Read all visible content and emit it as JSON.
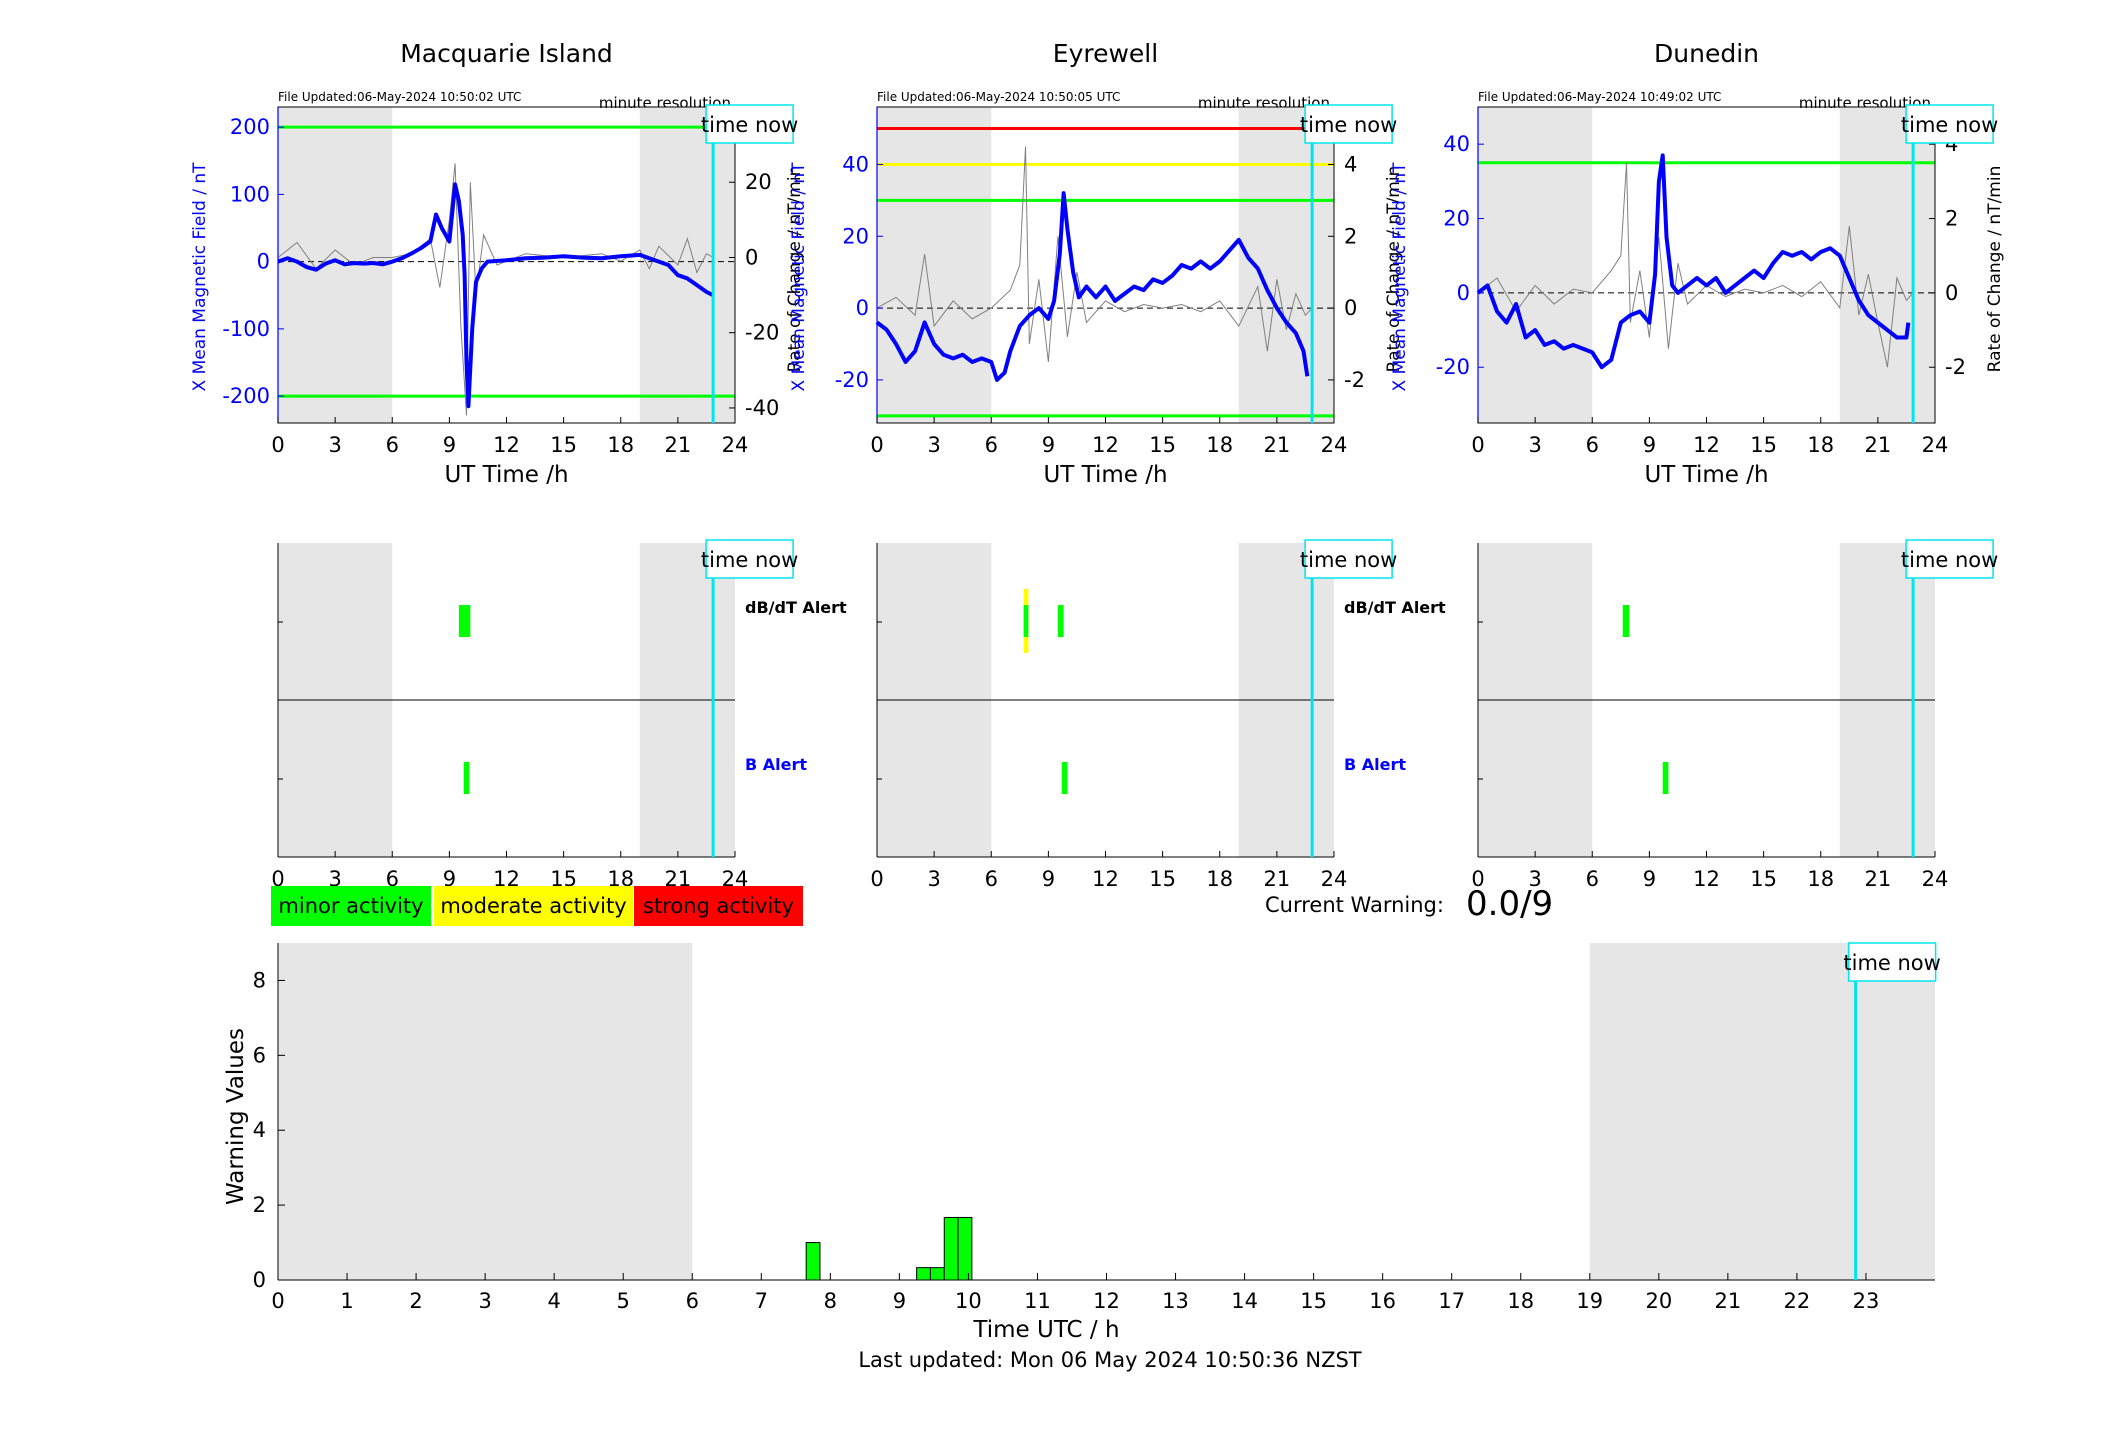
{
  "colors": {
    "night": "#e6e6e6",
    "series_b": "#0000ff",
    "series_dbdt": "#808080",
    "now_line": "#00e5ee",
    "minor": "#00ff00",
    "moderate": "#ffff00",
    "strong": "#ff0000"
  },
  "time_now_label": "time now",
  "legend": {
    "minor": "minor activity",
    "moderate": "moderate activity",
    "strong": "strong activity"
  },
  "current_warning": {
    "label": "Current Warning:",
    "value": "0.0/9"
  },
  "last_updated": "Last updated: Mon 06 May 2024 10:50:36 NZST",
  "chart_data": [
    {
      "type": "line",
      "title": "Macquarie Island",
      "file_updated": "File Updated:06-May-2024 10:50:02 UTC",
      "resolution": "minute resolution",
      "xlabel": "UT Time /h",
      "ylabel": "X Mean Magnetic Field / nT",
      "y2label": "Rate of Change / nT/min",
      "xlim": [
        0,
        24
      ],
      "xticks": [
        0,
        3,
        6,
        9,
        12,
        15,
        18,
        21,
        24
      ],
      "ylim": [
        -240,
        230
      ],
      "yticks": [
        -200,
        -100,
        0,
        100,
        200
      ],
      "y2lim": [
        -44,
        40
      ],
      "y2ticks": [
        -40,
        -20,
        0,
        20
      ],
      "night_bands": [
        [
          0,
          6
        ],
        [
          19,
          24
        ]
      ],
      "time_now": 22.85,
      "thresholds": [
        {
          "value": 200,
          "color": "#00ff00"
        },
        {
          "value": -200,
          "color": "#00ff00"
        }
      ],
      "series": [
        {
          "x": [
            0,
            0.5,
            1,
            1.5,
            2,
            2.5,
            3,
            3.5,
            4,
            4.5,
            5,
            5.5,
            6,
            6.5,
            7,
            7.5,
            8,
            8.3,
            8.6,
            9,
            9.3,
            9.5,
            9.7,
            9.8,
            9.9,
            10,
            10.2,
            10.4,
            10.7,
            11,
            12,
            13,
            14,
            15,
            16,
            17,
            18,
            19,
            19.5,
            20,
            20.5,
            21,
            21.5,
            22,
            22.5,
            22.85
          ],
          "values": [
            0,
            5,
            0,
            -8,
            -12,
            -3,
            2,
            -4,
            -2,
            -3,
            -2,
            -4,
            0,
            5,
            12,
            20,
            30,
            70,
            50,
            30,
            115,
            90,
            40,
            -20,
            -150,
            -215,
            -100,
            -30,
            -10,
            0,
            2,
            5,
            6,
            8,
            6,
            5,
            8,
            10,
            5,
            0,
            -5,
            -20,
            -25,
            -35,
            -45,
            -50
          ]
        },
        {
          "x": [
            0,
            1,
            2,
            3,
            4,
            5,
            6,
            7,
            8,
            8.5,
            9,
            9.3,
            9.6,
            9.9,
            10.1,
            10.4,
            10.8,
            11.5,
            13,
            15,
            17,
            18,
            19,
            19.5,
            20,
            21,
            21.5,
            22,
            22.5,
            22.85
          ],
          "values": [
            0,
            4,
            -3,
            2,
            -2,
            0,
            0,
            1,
            5,
            -8,
            10,
            25,
            -18,
            -42,
            20,
            -10,
            6,
            -2,
            1,
            0,
            1,
            -1,
            2,
            -3,
            3,
            -2,
            5,
            -4,
            1,
            0
          ]
        }
      ],
      "alerts": {
        "labels": [
          "dB/dT Alert",
          "B Alert"
        ],
        "db_dt": [
          {
            "start": 9.5,
            "end": 10.1,
            "level": "minor"
          }
        ],
        "b": [
          {
            "start": 9.75,
            "end": 10.05,
            "level": "minor"
          }
        ]
      }
    },
    {
      "type": "line",
      "title": "Eyrewell",
      "file_updated": "File Updated:06-May-2024 10:50:05 UTC",
      "resolution": "minute resolution",
      "xlabel": "UT Time /h",
      "ylabel": "X Mean Magnetic Field / nT",
      "y2label": "Rate of Change / nT/min",
      "xlim": [
        0,
        24
      ],
      "xticks": [
        0,
        3,
        6,
        9,
        12,
        15,
        18,
        21,
        24
      ],
      "ylim": [
        -32,
        56
      ],
      "yticks": [
        -20,
        0,
        20,
        40
      ],
      "y2lim": [
        -3.2,
        5.6
      ],
      "y2ticks": [
        -2,
        0,
        2,
        4
      ],
      "night_bands": [
        [
          0,
          6
        ],
        [
          19,
          24
        ]
      ],
      "time_now": 22.85,
      "thresholds": [
        {
          "value": 50,
          "color": "#ff0000"
        },
        {
          "value": 40,
          "color": "#ffff00"
        },
        {
          "value": 30,
          "color": "#00ff00"
        },
        {
          "value": -30,
          "color": "#00ff00"
        }
      ],
      "series": [
        {
          "x": [
            0,
            0.5,
            1,
            1.5,
            2,
            2.5,
            3,
            3.5,
            4,
            4.5,
            5,
            5.5,
            6,
            6.3,
            6.7,
            7,
            7.5,
            8,
            8.5,
            9,
            9.3,
            9.6,
            9.8,
            10,
            10.3,
            10.6,
            11,
            11.5,
            12,
            12.5,
            13,
            13.5,
            14,
            14.5,
            15,
            15.5,
            16,
            16.5,
            17,
            17.5,
            18,
            18.5,
            19,
            19.5,
            20,
            20.5,
            21,
            21.5,
            22,
            22.4,
            22.6
          ],
          "values": [
            -4,
            -6,
            -10,
            -15,
            -12,
            -4,
            -10,
            -13,
            -14,
            -13,
            -15,
            -14,
            -15,
            -20,
            -18,
            -12,
            -5,
            -2,
            0,
            -3,
            2,
            15,
            32,
            22,
            10,
            3,
            6,
            3,
            6,
            2,
            4,
            6,
            5,
            8,
            7,
            9,
            12,
            11,
            13,
            11,
            13,
            16,
            19,
            14,
            11,
            5,
            0,
            -4,
            -7,
            -12,
            -19
          ]
        },
        {
          "x": [
            0,
            1,
            2,
            2.5,
            3,
            4,
            5,
            6,
            7,
            7.5,
            7.8,
            8,
            8.5,
            9,
            9.5,
            10,
            10.5,
            11,
            12,
            13,
            14,
            15,
            16,
            17,
            18,
            19,
            20,
            20.5,
            21,
            21.5,
            22,
            22.5,
            22.85
          ],
          "values": [
            0,
            0.3,
            -0.2,
            1.5,
            -0.5,
            0.2,
            -0.3,
            0,
            0.5,
            1.2,
            4.5,
            -1,
            0.8,
            -1.5,
            2,
            -0.8,
            1,
            -0.4,
            0.2,
            -0.1,
            0.1,
            0,
            0.1,
            -0.1,
            0.2,
            -0.5,
            0.6,
            -1.2,
            0.8,
            -0.6,
            0.4,
            -0.2,
            0
          ]
        }
      ],
      "alerts": {
        "labels": [
          "dB/dT Alert",
          "B Alert"
        ],
        "db_dt": [
          {
            "start": 7.7,
            "end": 7.95,
            "level": "moderate"
          },
          {
            "start": 9.5,
            "end": 9.8,
            "level": "minor"
          }
        ],
        "b": [
          {
            "start": 9.7,
            "end": 10.0,
            "level": "minor"
          }
        ]
      }
    },
    {
      "type": "line",
      "title": "Dunedin",
      "file_updated": "File Updated:06-May-2024 10:49:02 UTC",
      "resolution": "minute resolution",
      "xlabel": "UT Time /h",
      "ylabel": "X Mean Magnetic Field / nT",
      "y2label": "Rate of Change / nT/min",
      "xlim": [
        0,
        24
      ],
      "xticks": [
        0,
        3,
        6,
        9,
        12,
        15,
        18,
        21,
        24
      ],
      "ylim": [
        -35,
        50
      ],
      "yticks": [
        -20,
        0,
        20,
        40
      ],
      "y2lim": [
        -3.5,
        5
      ],
      "y2ticks": [
        -2,
        0,
        2,
        4
      ],
      "night_bands": [
        [
          0,
          6
        ],
        [
          19,
          24
        ]
      ],
      "time_now": 22.85,
      "thresholds": [
        {
          "value": 35,
          "color": "#00ff00"
        }
      ],
      "series": [
        {
          "x": [
            0,
            0.5,
            1,
            1.5,
            2,
            2.5,
            3,
            3.5,
            4,
            4.5,
            5,
            5.5,
            6,
            6.5,
            7,
            7.5,
            8,
            8.5,
            9,
            9.3,
            9.5,
            9.7,
            9.9,
            10.2,
            10.5,
            11,
            11.5,
            12,
            12.5,
            13,
            13.5,
            14,
            14.5,
            15,
            15.5,
            16,
            16.5,
            17,
            17.5,
            18,
            18.5,
            19,
            19.5,
            20,
            20.5,
            21,
            21.5,
            22,
            22.5,
            22.6
          ],
          "values": [
            0,
            2,
            -5,
            -8,
            -3,
            -12,
            -10,
            -14,
            -13,
            -15,
            -14,
            -15,
            -16,
            -20,
            -18,
            -8,
            -6,
            -5,
            -8,
            5,
            30,
            37,
            15,
            2,
            0,
            2,
            4,
            2,
            4,
            0,
            2,
            4,
            6,
            4,
            8,
            11,
            10,
            11,
            9,
            11,
            12,
            10,
            4,
            -2,
            -6,
            -8,
            -10,
            -12,
            -12,
            -8
          ]
        },
        {
          "x": [
            0,
            1,
            2,
            3,
            4,
            5,
            6,
            7,
            7.5,
            7.8,
            8,
            8.5,
            9,
            9.5,
            10,
            10.5,
            11,
            12,
            13,
            14,
            15,
            16,
            17,
            18,
            19,
            19.5,
            20,
            20.5,
            21,
            21.5,
            22,
            22.5,
            22.85
          ],
          "values": [
            0,
            0.4,
            -0.5,
            0.2,
            -0.3,
            0.1,
            0,
            0.6,
            1.0,
            3.5,
            -0.8,
            0.6,
            -1.2,
            1.5,
            -1.5,
            0.8,
            -0.3,
            0.2,
            -0.1,
            0.1,
            0,
            0.2,
            -0.1,
            0.3,
            -0.4,
            1.8,
            -0.6,
            0.5,
            -0.8,
            -2.0,
            0.4,
            -0.2,
            0
          ]
        }
      ],
      "alerts": {
        "labels": [
          "",
          ""
        ],
        "db_dt": [
          {
            "start": 7.6,
            "end": 7.95,
            "level": "minor"
          }
        ],
        "b": [
          {
            "start": 9.7,
            "end": 10.0,
            "level": "minor"
          }
        ]
      }
    },
    {
      "type": "bar",
      "xlabel": "Time UTC / h",
      "ylabel": "Warning Values",
      "xlim": [
        0,
        24
      ],
      "xticks": [
        0,
        1,
        2,
        3,
        4,
        5,
        6,
        7,
        8,
        9,
        10,
        11,
        12,
        13,
        14,
        15,
        16,
        17,
        18,
        19,
        20,
        21,
        22,
        23
      ],
      "ylim": [
        0,
        9
      ],
      "yticks": [
        0,
        2,
        4,
        6,
        8
      ],
      "night_bands": [
        [
          0,
          6
        ],
        [
          19,
          24
        ]
      ],
      "time_now": 22.85,
      "bars": [
        {
          "x": 7.75,
          "value": 1.0
        },
        {
          "x": 9.35,
          "value": 0.33
        },
        {
          "x": 9.55,
          "value": 0.33
        },
        {
          "x": 9.75,
          "value": 1.67
        },
        {
          "x": 9.95,
          "value": 1.67
        }
      ]
    }
  ]
}
